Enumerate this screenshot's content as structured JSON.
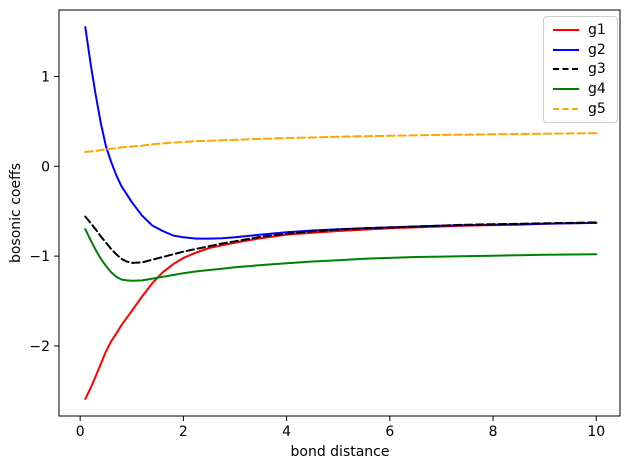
{
  "chart_data": {
    "type": "line",
    "title": "",
    "xlabel": "bond distance",
    "ylabel": "bosonic coeffs",
    "xlim": [
      -0.41,
      10.46
    ],
    "ylim": [
      -2.78,
      1.74
    ],
    "xticks": [
      "0",
      "2",
      "4",
      "6",
      "8",
      "10"
    ],
    "xtick_values": [
      0,
      2,
      4,
      6,
      8,
      10
    ],
    "yticks": [
      "−2",
      "−1",
      "0",
      "1"
    ],
    "ytick_values": [
      -2,
      -1,
      0,
      1
    ],
    "grid": false,
    "legend_position": "upper right",
    "x": [
      0.1,
      0.2,
      0.3,
      0.4,
      0.5,
      0.6,
      0.7,
      0.8,
      0.9,
      1.0,
      1.2,
      1.4,
      1.6,
      1.8,
      2.0,
      2.25,
      2.5,
      2.75,
      3.0,
      3.5,
      4.0,
      4.5,
      5.0,
      5.5,
      6.0,
      6.5,
      7.0,
      7.5,
      8.0,
      8.5,
      9.0,
      9.5,
      10.0
    ],
    "series": [
      {
        "name": "g1",
        "color": "#ff0000",
        "dash": "solid",
        "values": [
          -2.59,
          -2.47,
          -2.34,
          -2.2,
          -2.06,
          -1.95,
          -1.86,
          -1.77,
          -1.69,
          -1.61,
          -1.45,
          -1.3,
          -1.18,
          -1.09,
          -1.02,
          -0.96,
          -0.91,
          -0.88,
          -0.85,
          -0.8,
          -0.76,
          -0.74,
          -0.72,
          -0.705,
          -0.69,
          -0.68,
          -0.67,
          -0.66,
          -0.655,
          -0.65,
          -0.64,
          -0.635,
          -0.63
        ]
      },
      {
        "name": "g2",
        "color": "#0000ff",
        "dash": "solid",
        "values": [
          1.55,
          1.15,
          0.8,
          0.48,
          0.22,
          0.05,
          -0.1,
          -0.22,
          -0.31,
          -0.4,
          -0.55,
          -0.66,
          -0.72,
          -0.77,
          -0.79,
          -0.805,
          -0.805,
          -0.8,
          -0.79,
          -0.76,
          -0.735,
          -0.715,
          -0.7,
          -0.69,
          -0.68,
          -0.67,
          -0.66,
          -0.655,
          -0.65,
          -0.645,
          -0.64,
          -0.635,
          -0.63
        ]
      },
      {
        "name": "g3",
        "color": "#000000",
        "dash": "dashed",
        "values": [
          -0.56,
          -0.63,
          -0.7,
          -0.78,
          -0.85,
          -0.92,
          -0.98,
          -1.03,
          -1.06,
          -1.075,
          -1.07,
          -1.04,
          -1.01,
          -0.98,
          -0.95,
          -0.92,
          -0.89,
          -0.86,
          -0.835,
          -0.785,
          -0.75,
          -0.725,
          -0.705,
          -0.69,
          -0.68,
          -0.67,
          -0.66,
          -0.65,
          -0.645,
          -0.64,
          -0.635,
          -0.63,
          -0.625
        ]
      },
      {
        "name": "g4",
        "color": "#008000",
        "dash": "solid",
        "values": [
          -0.7,
          -0.82,
          -0.93,
          -1.03,
          -1.11,
          -1.18,
          -1.23,
          -1.26,
          -1.27,
          -1.275,
          -1.27,
          -1.25,
          -1.23,
          -1.21,
          -1.19,
          -1.17,
          -1.155,
          -1.14,
          -1.125,
          -1.1,
          -1.08,
          -1.06,
          -1.045,
          -1.03,
          -1.02,
          -1.01,
          -1.005,
          -1.0,
          -0.995,
          -0.99,
          -0.985,
          -0.982,
          -0.98
        ]
      },
      {
        "name": "g5",
        "color": "#ffa500",
        "dash": "dashed",
        "values": [
          0.16,
          0.165,
          0.17,
          0.18,
          0.19,
          0.195,
          0.2,
          0.21,
          0.215,
          0.22,
          0.23,
          0.245,
          0.255,
          0.265,
          0.27,
          0.28,
          0.285,
          0.29,
          0.295,
          0.305,
          0.315,
          0.32,
          0.33,
          0.335,
          0.34,
          0.345,
          0.35,
          0.353,
          0.357,
          0.36,
          0.363,
          0.366,
          0.37
        ]
      }
    ]
  },
  "colors": {
    "background": "#ffffff",
    "spine": "#000000",
    "tick": "#000000",
    "legend_border": "#cccccc"
  }
}
